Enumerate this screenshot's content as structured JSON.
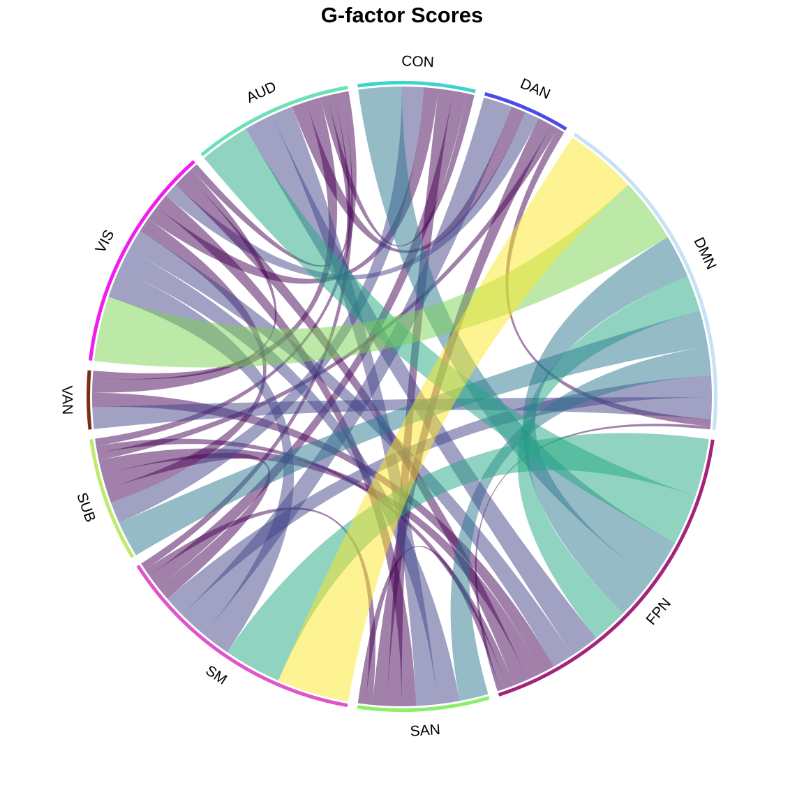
{
  "chart_data": {
    "type": "chord",
    "title": "G-factor Scores",
    "sectors": [
      {
        "name": "SM",
        "color": "#E055C8"
      },
      {
        "name": "SUB",
        "color": "#BEEA6E"
      },
      {
        "name": "VAN",
        "color": "#7A2E16"
      },
      {
        "name": "VIS",
        "color": "#F01CF0"
      },
      {
        "name": "AUD",
        "color": "#6EE0B8"
      },
      {
        "name": "CON",
        "color": "#3FD3D0"
      },
      {
        "name": "DAN",
        "color": "#4B4BE8"
      },
      {
        "name": "DMN",
        "color": "#C6E2F5"
      },
      {
        "name": "FPN",
        "color": "#A4237C"
      },
      {
        "name": "SAN",
        "color": "#8CEE6A"
      }
    ],
    "links": [
      {
        "from": "SM",
        "to": "DMN",
        "value": 10,
        "color": "#FDE725"
      },
      {
        "from": "VIS",
        "to": "DMN",
        "value": 9,
        "color": "#7AD151"
      },
      {
        "from": "SM",
        "to": "FPN",
        "value": 8,
        "color": "#22A884"
      },
      {
        "from": "FPN",
        "to": "AUD",
        "value": 7,
        "color": "#22A884"
      },
      {
        "from": "FPN",
        "to": "CON",
        "value": 6,
        "color": "#2A788E"
      },
      {
        "from": "FPN",
        "to": "DMN",
        "value": 6,
        "color": "#2A788E"
      },
      {
        "from": "FPN",
        "to": "DMN",
        "value": 5,
        "color": "#22A884"
      },
      {
        "from": "SUB",
        "to": "DMN",
        "value": 5,
        "color": "#2A788E"
      },
      {
        "from": "SM",
        "to": "VIS",
        "value": 4,
        "color": "#414487"
      },
      {
        "from": "SAN",
        "to": "DMN",
        "value": 4,
        "color": "#2A788E"
      },
      {
        "from": "SM",
        "to": "DAN",
        "value": 4,
        "color": "#414487"
      },
      {
        "from": "FPN",
        "to": "AUD",
        "value": 4,
        "color": "#414487"
      },
      {
        "from": "SUB",
        "to": "CON",
        "value": 3,
        "color": "#414487"
      },
      {
        "from": "SM",
        "to": "DMN",
        "value": 3,
        "color": "#414487"
      },
      {
        "from": "SAN",
        "to": "VIS",
        "value": 3,
        "color": "#414487"
      },
      {
        "from": "SAN",
        "to": "AUD",
        "value": 3,
        "color": "#414487"
      },
      {
        "from": "VIS",
        "to": "FPN",
        "value": 3,
        "color": "#414487"
      },
      {
        "from": "VAN",
        "to": "DMN",
        "value": 3,
        "color": "#414487"
      },
      {
        "from": "SUB",
        "to": "VIS",
        "value": 2,
        "color": "#440154"
      },
      {
        "from": "VIS",
        "to": "CON",
        "value": 2,
        "color": "#440154"
      },
      {
        "from": "AUD",
        "to": "DAN",
        "value": 2,
        "color": "#440154"
      },
      {
        "from": "VAN",
        "to": "FPN",
        "value": 2,
        "color": "#440154"
      },
      {
        "from": "SAN",
        "to": "VIS",
        "value": 2,
        "color": "#440154"
      },
      {
        "from": "SM",
        "to": "SUB",
        "value": 2,
        "color": "#440154"
      },
      {
        "from": "SAN",
        "to": "CON",
        "value": 2,
        "color": "#440154"
      },
      {
        "from": "VIS",
        "to": "DAN",
        "value": 2,
        "color": "#414487"
      },
      {
        "from": "FPN",
        "to": "SUB",
        "value": 2,
        "color": "#440154"
      },
      {
        "from": "FPN",
        "to": "VIS",
        "value": 2,
        "color": "#440154"
      },
      {
        "from": "VAN",
        "to": "AUD",
        "value": 2,
        "color": "#440154"
      },
      {
        "from": "SM",
        "to": "CON",
        "value": 2,
        "color": "#440154"
      },
      {
        "from": "SAN",
        "to": "DAN",
        "value": 2,
        "color": "#440154"
      },
      {
        "from": "SUB",
        "to": "DAN",
        "value": 1,
        "color": "#440154"
      },
      {
        "from": "VAN",
        "to": "VIS",
        "value": 1,
        "color": "#440154"
      },
      {
        "from": "SM",
        "to": "SAN",
        "value": 1,
        "color": "#440154"
      },
      {
        "from": "SUB",
        "to": "FPN",
        "value": 1,
        "color": "#440154"
      },
      {
        "from": "AUD",
        "to": "CON",
        "value": 1,
        "color": "#440154"
      },
      {
        "from": "VIS",
        "to": "AUD",
        "value": 1,
        "color": "#440154"
      },
      {
        "from": "SAN",
        "to": "FPN",
        "value": 1,
        "color": "#440154"
      },
      {
        "from": "DAN",
        "to": "DMN",
        "value": 1,
        "color": "#440154"
      },
      {
        "from": "SM",
        "to": "AUD",
        "value": 1,
        "color": "#440154"
      },
      {
        "from": "DMN",
        "to": "FPN",
        "value": 0.4,
        "color": "#440154"
      },
      {
        "from": "SUB",
        "to": "AUD",
        "value": 1,
        "color": "#440154"
      }
    ]
  }
}
